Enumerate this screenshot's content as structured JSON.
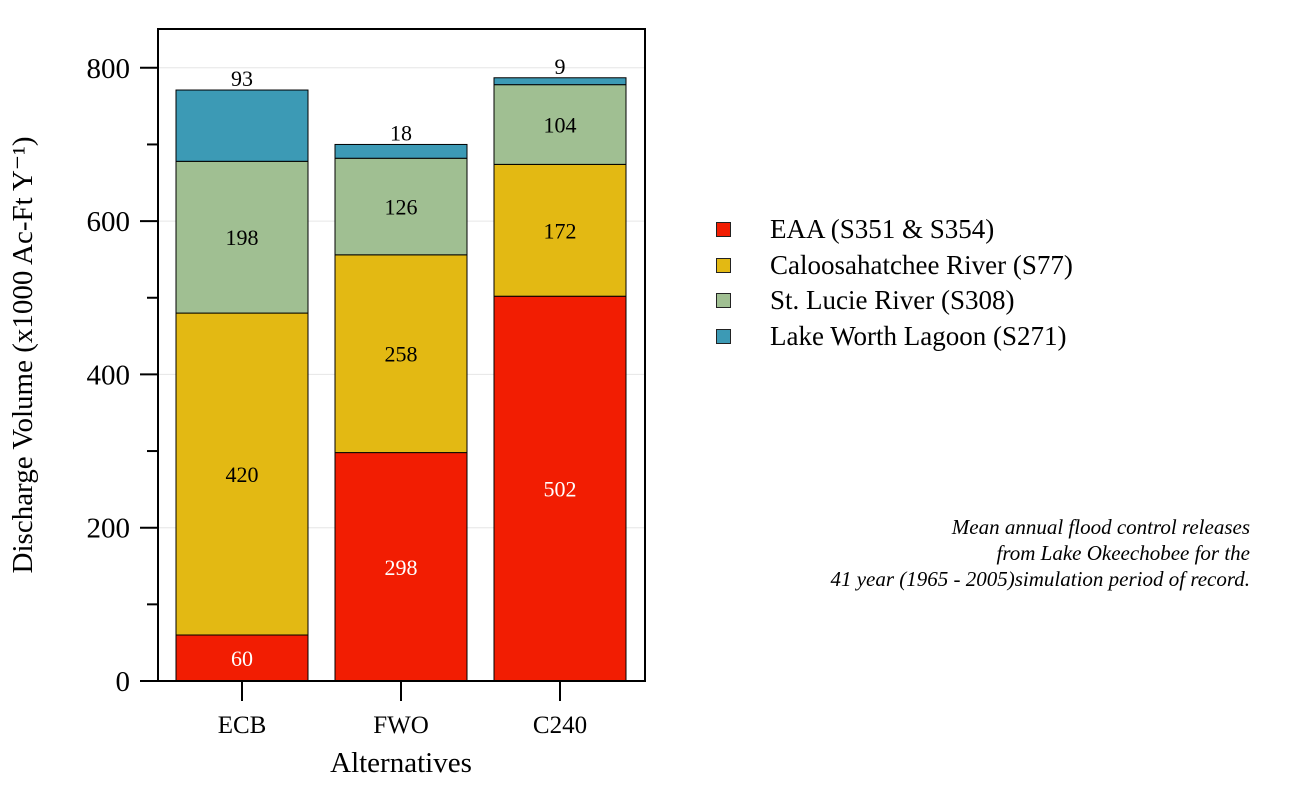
{
  "colors": {
    "eaa": "#F21D02",
    "caloosahatchee": "#E3B913",
    "st_lucie": "#A0BF92",
    "lake_worth": "#3C9AB5",
    "axis": "#000000",
    "grid": "#e6e6e6"
  },
  "legend": {
    "items": [
      {
        "label": "EAA (S351 & S354)",
        "color": "#F21D02"
      },
      {
        "label": "Caloosahatchee River (S77)",
        "color": "#E3B913"
      },
      {
        "label": "St. Lucie River (S308)",
        "color": "#A0BF92"
      },
      {
        "label": "Lake Worth Lagoon (S271)",
        "color": "#3C9AB5"
      }
    ]
  },
  "note": {
    "lines": [
      "Mean annual flood control releases",
      "from Lake Okeechobee for the",
      "41 year (1965 - 2005)simulation period of record."
    ]
  },
  "chart_data": {
    "type": "bar",
    "stacked": true,
    "categories": [
      "ECB",
      "FWO",
      "C240"
    ],
    "series": [
      {
        "name": "EAA (S351 & S354)",
        "values": [
          60,
          298,
          502
        ],
        "color": "#F21D02",
        "label_color": "#ffffff"
      },
      {
        "name": "Caloosahatchee River (S77)",
        "values": [
          420,
          258,
          172
        ],
        "color": "#E3B913",
        "label_color": "#000000"
      },
      {
        "name": "St. Lucie River (S308)",
        "values": [
          198,
          126,
          104
        ],
        "color": "#A0BF92",
        "label_color": "#000000"
      },
      {
        "name": "Lake Worth Lagoon (S271)",
        "values": [
          93,
          18,
          9
        ],
        "color": "#3C9AB5",
        "label_color": "#000000"
      }
    ],
    "xlabel": "Alternatives",
    "ylabel": "Discharge Volume (x1000 Ac-Ft Y⁻¹)",
    "ylim": [
      0,
      800
    ],
    "yticks": [
      0,
      200,
      400,
      600,
      800
    ],
    "yminor_step": 100,
    "grid": true,
    "legend_position": "right"
  }
}
